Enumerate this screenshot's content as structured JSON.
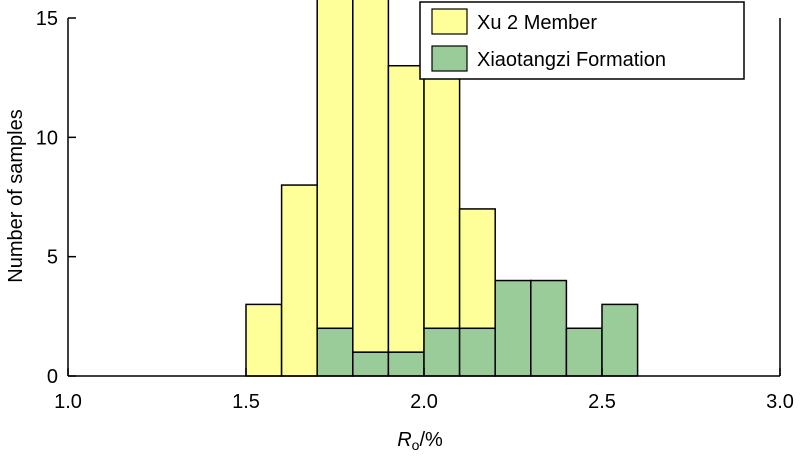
{
  "chart_data": {
    "type": "bar",
    "subtype": "stacked histogram",
    "xlabel": "R",
    "xlabel_subscript": "o",
    "xlabel_unit": "/%",
    "ylabel": "Number of samples",
    "xlim": [
      1.0,
      3.0
    ],
    "ylim": [
      0,
      15
    ],
    "xticks": [
      "1.0",
      "1.5",
      "2.0",
      "2.5",
      "3.0"
    ],
    "yticks": [
      "0",
      "5",
      "10",
      "15"
    ],
    "grid": false,
    "legend_position": "top-right",
    "bin_width": 0.1,
    "bin_starts": [
      1.5,
      1.6,
      1.7,
      1.8,
      1.9,
      2.0,
      2.1,
      2.2,
      2.3,
      2.4,
      2.5
    ],
    "series": [
      {
        "name": "Xiaotangzi Formation",
        "color": "#99cc99",
        "values": [
          0,
          0,
          2,
          1,
          1,
          2,
          2,
          4,
          4,
          2,
          3
        ]
      },
      {
        "name": "Xu 2 Member",
        "color": "#ffff99",
        "values": [
          3,
          8,
          14,
          15,
          12,
          12,
          5,
          0,
          0,
          0,
          0
        ]
      }
    ],
    "legend": [
      "Xu 2 Member",
      "Xiaotangzi Formation"
    ]
  }
}
